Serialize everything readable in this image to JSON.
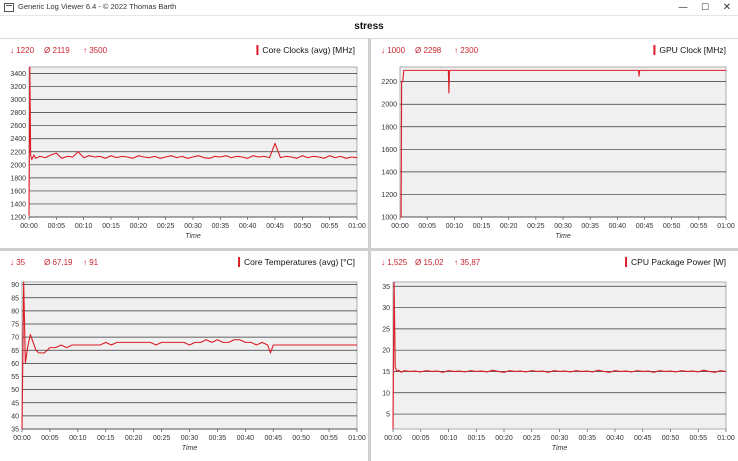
{
  "window": {
    "title": "Generic Log Viewer 6.4 - © 2022 Thomas Barth",
    "minimize_glyph": "—",
    "maximize_glyph": "☐",
    "close_glyph": "✕"
  },
  "page_title": "stress",
  "chart_data": [
    {
      "id": "core-clocks",
      "type": "line",
      "title": "Core Clocks (avg) [MHz]",
      "stats": {
        "min": "↓ 1220",
        "avg": "Ø 2119",
        "max": "↑ 3500"
      },
      "xlabel": "Time",
      "ylabel": "",
      "x_ticks": [
        "00:00",
        "00:05",
        "00:10",
        "00:15",
        "00:20",
        "00:25",
        "00:30",
        "00:35",
        "00:40",
        "00:45",
        "00:50",
        "00:55",
        "01:00"
      ],
      "y_ticks": [
        1200,
        1400,
        1600,
        1800,
        2000,
        2200,
        2400,
        2600,
        2800,
        3000,
        3200,
        3400
      ],
      "ylim": [
        1200,
        3500
      ],
      "xlim": [
        0,
        60
      ],
      "color": "#dd1c26",
      "series": [
        {
          "x": [
            0,
            0.15,
            0.3,
            0.5,
            0.7,
            0.9,
            1.2,
            2,
            3,
            4,
            5,
            6,
            7,
            8,
            9,
            10,
            11,
            12,
            13,
            14,
            15,
            16,
            17,
            18,
            19,
            20,
            21,
            22,
            23,
            24,
            25,
            26,
            27,
            28,
            29,
            30,
            31,
            32,
            33,
            34,
            35,
            36,
            37,
            38,
            39,
            40,
            41,
            42,
            43,
            44,
            45,
            46,
            47,
            48,
            49,
            50,
            51,
            52,
            53,
            54,
            55,
            56,
            57,
            58,
            59,
            60
          ],
          "y": [
            1220,
            3500,
            2150,
            2080,
            2120,
            2150,
            2100,
            2130,
            2110,
            2150,
            2180,
            2100,
            2130,
            2120,
            2200,
            2110,
            2140,
            2120,
            2130,
            2100,
            2140,
            2110,
            2130,
            2120,
            2100,
            2140,
            2120,
            2110,
            2130,
            2100,
            2120,
            2140,
            2110,
            2130,
            2100,
            2120,
            2140,
            2110,
            2100,
            2130,
            2120,
            2140,
            2110,
            2130,
            2120,
            2100,
            2140,
            2120,
            2130,
            2110,
            2330,
            2110,
            2130,
            2120,
            2100,
            2140,
            2110,
            2130,
            2120,
            2100,
            2140,
            2110,
            2130,
            2100,
            2120,
            2110
          ]
        }
      ]
    },
    {
      "id": "gpu-clock",
      "type": "line",
      "title": "GPU Clock [MHz]",
      "stats": {
        "min": "↓ 1000",
        "avg": "Ø 2298",
        "max": "↑ 2300"
      },
      "xlabel": "Time",
      "ylabel": "",
      "x_ticks": [
        "00:00",
        "00:05",
        "00:10",
        "00:15",
        "00:20",
        "00:25",
        "00:30",
        "00:35",
        "00:40",
        "00:45",
        "00:50",
        "00:55",
        "01:00"
      ],
      "y_ticks": [
        1000,
        1200,
        1400,
        1600,
        1800,
        2000,
        2200
      ],
      "ylim": [
        1000,
        2330
      ],
      "xlim": [
        0,
        60
      ],
      "color": "#dd1c26",
      "series": [
        {
          "x": [
            0,
            0.2,
            0.3,
            0.5,
            0.7,
            1,
            8.9,
            9,
            9.1,
            9.3,
            20,
            30,
            43.9,
            44,
            44.1,
            44.3,
            50,
            60
          ],
          "y": [
            1000,
            1000,
            2200,
            2200,
            2300,
            2300,
            2300,
            2100,
            2300,
            2300,
            2300,
            2300,
            2300,
            2250,
            2300,
            2300,
            2300,
            2300
          ]
        }
      ]
    },
    {
      "id": "core-temperatures",
      "type": "line",
      "title": "Core Temperatures (avg) [°C]",
      "stats": {
        "min": "↓ 35",
        "avg": "Ø 67,19",
        "max": "↑ 91"
      },
      "xlabel": "Time",
      "ylabel": "",
      "x_ticks": [
        "00:00",
        "00:05",
        "00:10",
        "00:15",
        "00:20",
        "00:25",
        "00:30",
        "00:35",
        "00:40",
        "00:45",
        "00:50",
        "00:55",
        "01:00"
      ],
      "y_ticks": [
        35,
        40,
        45,
        50,
        55,
        60,
        65,
        70,
        75,
        80,
        85,
        90
      ],
      "ylim": [
        35,
        91
      ],
      "xlim": [
        0,
        60
      ],
      "color": "#dd1c26",
      "series": [
        {
          "x": [
            0,
            0.3,
            0.6,
            1,
            1.5,
            2,
            2.5,
            3,
            3.5,
            4,
            4.5,
            5,
            6,
            7,
            8,
            9,
            10,
            11,
            12,
            13,
            14,
            15,
            16,
            17,
            18,
            19,
            20,
            21,
            22,
            23,
            24,
            25,
            26,
            27,
            28,
            29,
            30,
            31,
            32,
            33,
            34,
            35,
            36,
            37,
            38,
            39,
            40,
            41,
            42,
            43,
            44,
            44.5,
            45,
            46,
            47,
            48,
            49,
            50,
            51,
            52,
            53,
            54,
            55,
            56,
            57,
            58,
            59,
            60
          ],
          "y": [
            35,
            91,
            60,
            66,
            71,
            68,
            65,
            64,
            64,
            64,
            65,
            66,
            66,
            67,
            66,
            67,
            67,
            67,
            67,
            67,
            67,
            68,
            67,
            68,
            68,
            68,
            68,
            68,
            68,
            68,
            67,
            68,
            68,
            68,
            68,
            68,
            67,
            68,
            68,
            69,
            68,
            69,
            68,
            68,
            69,
            69,
            68,
            68,
            67,
            68,
            67,
            64,
            67,
            67,
            67,
            67,
            67,
            67,
            67,
            67,
            67,
            67,
            67,
            67,
            67,
            67,
            67,
            67
          ]
        }
      ]
    },
    {
      "id": "cpu-package-power",
      "type": "line",
      "title": "CPU Package Power [W]",
      "stats": {
        "min": "↓ 1,525",
        "avg": "Ø 15,02",
        "max": "↑ 35,87"
      },
      "xlabel": "Time",
      "ylabel": "",
      "x_ticks": [
        "00:00",
        "00:05",
        "00:10",
        "00:15",
        "00:20",
        "00:25",
        "00:30",
        "00:35",
        "00:40",
        "00:45",
        "00:50",
        "00:55",
        "01:00"
      ],
      "y_ticks": [
        5,
        10,
        15,
        20,
        25,
        30,
        35
      ],
      "ylim": [
        1.5,
        36
      ],
      "xlim": [
        0,
        60
      ],
      "color": "#dd1c26",
      "series": [
        {
          "x": [
            0,
            0.2,
            0.4,
            0.7,
            1,
            1.5,
            2,
            3,
            4,
            5,
            6,
            7,
            8,
            9,
            10,
            11,
            12,
            13,
            14,
            15,
            16,
            17,
            18,
            19,
            20,
            21,
            22,
            23,
            24,
            25,
            26,
            27,
            28,
            29,
            30,
            31,
            32,
            33,
            34,
            35,
            36,
            37,
            38,
            39,
            40,
            41,
            42,
            43,
            44,
            45,
            46,
            47,
            48,
            49,
            50,
            51,
            52,
            53,
            54,
            55,
            56,
            57,
            58,
            59,
            60
          ],
          "y": [
            1.525,
            35.87,
            16,
            15,
            15.3,
            14.8,
            15.2,
            15,
            15.1,
            14.9,
            15.2,
            15,
            15.1,
            14.8,
            15.2,
            15,
            15.1,
            14.9,
            15.2,
            15,
            15.1,
            14.9,
            15.3,
            15,
            14.8,
            15.2,
            15,
            15.1,
            14.9,
            15.2,
            15,
            15.1,
            14.8,
            15.2,
            15,
            15.1,
            14.9,
            15.2,
            15,
            15.1,
            14.9,
            15.3,
            15,
            14.8,
            15.2,
            15,
            15.1,
            14.9,
            15.2,
            15,
            15.1,
            14.8,
            15.2,
            15,
            15.1,
            14.9,
            15.2,
            15,
            15.1,
            14.9,
            15.3,
            15,
            14.8,
            15.2,
            15
          ]
        }
      ]
    }
  ]
}
